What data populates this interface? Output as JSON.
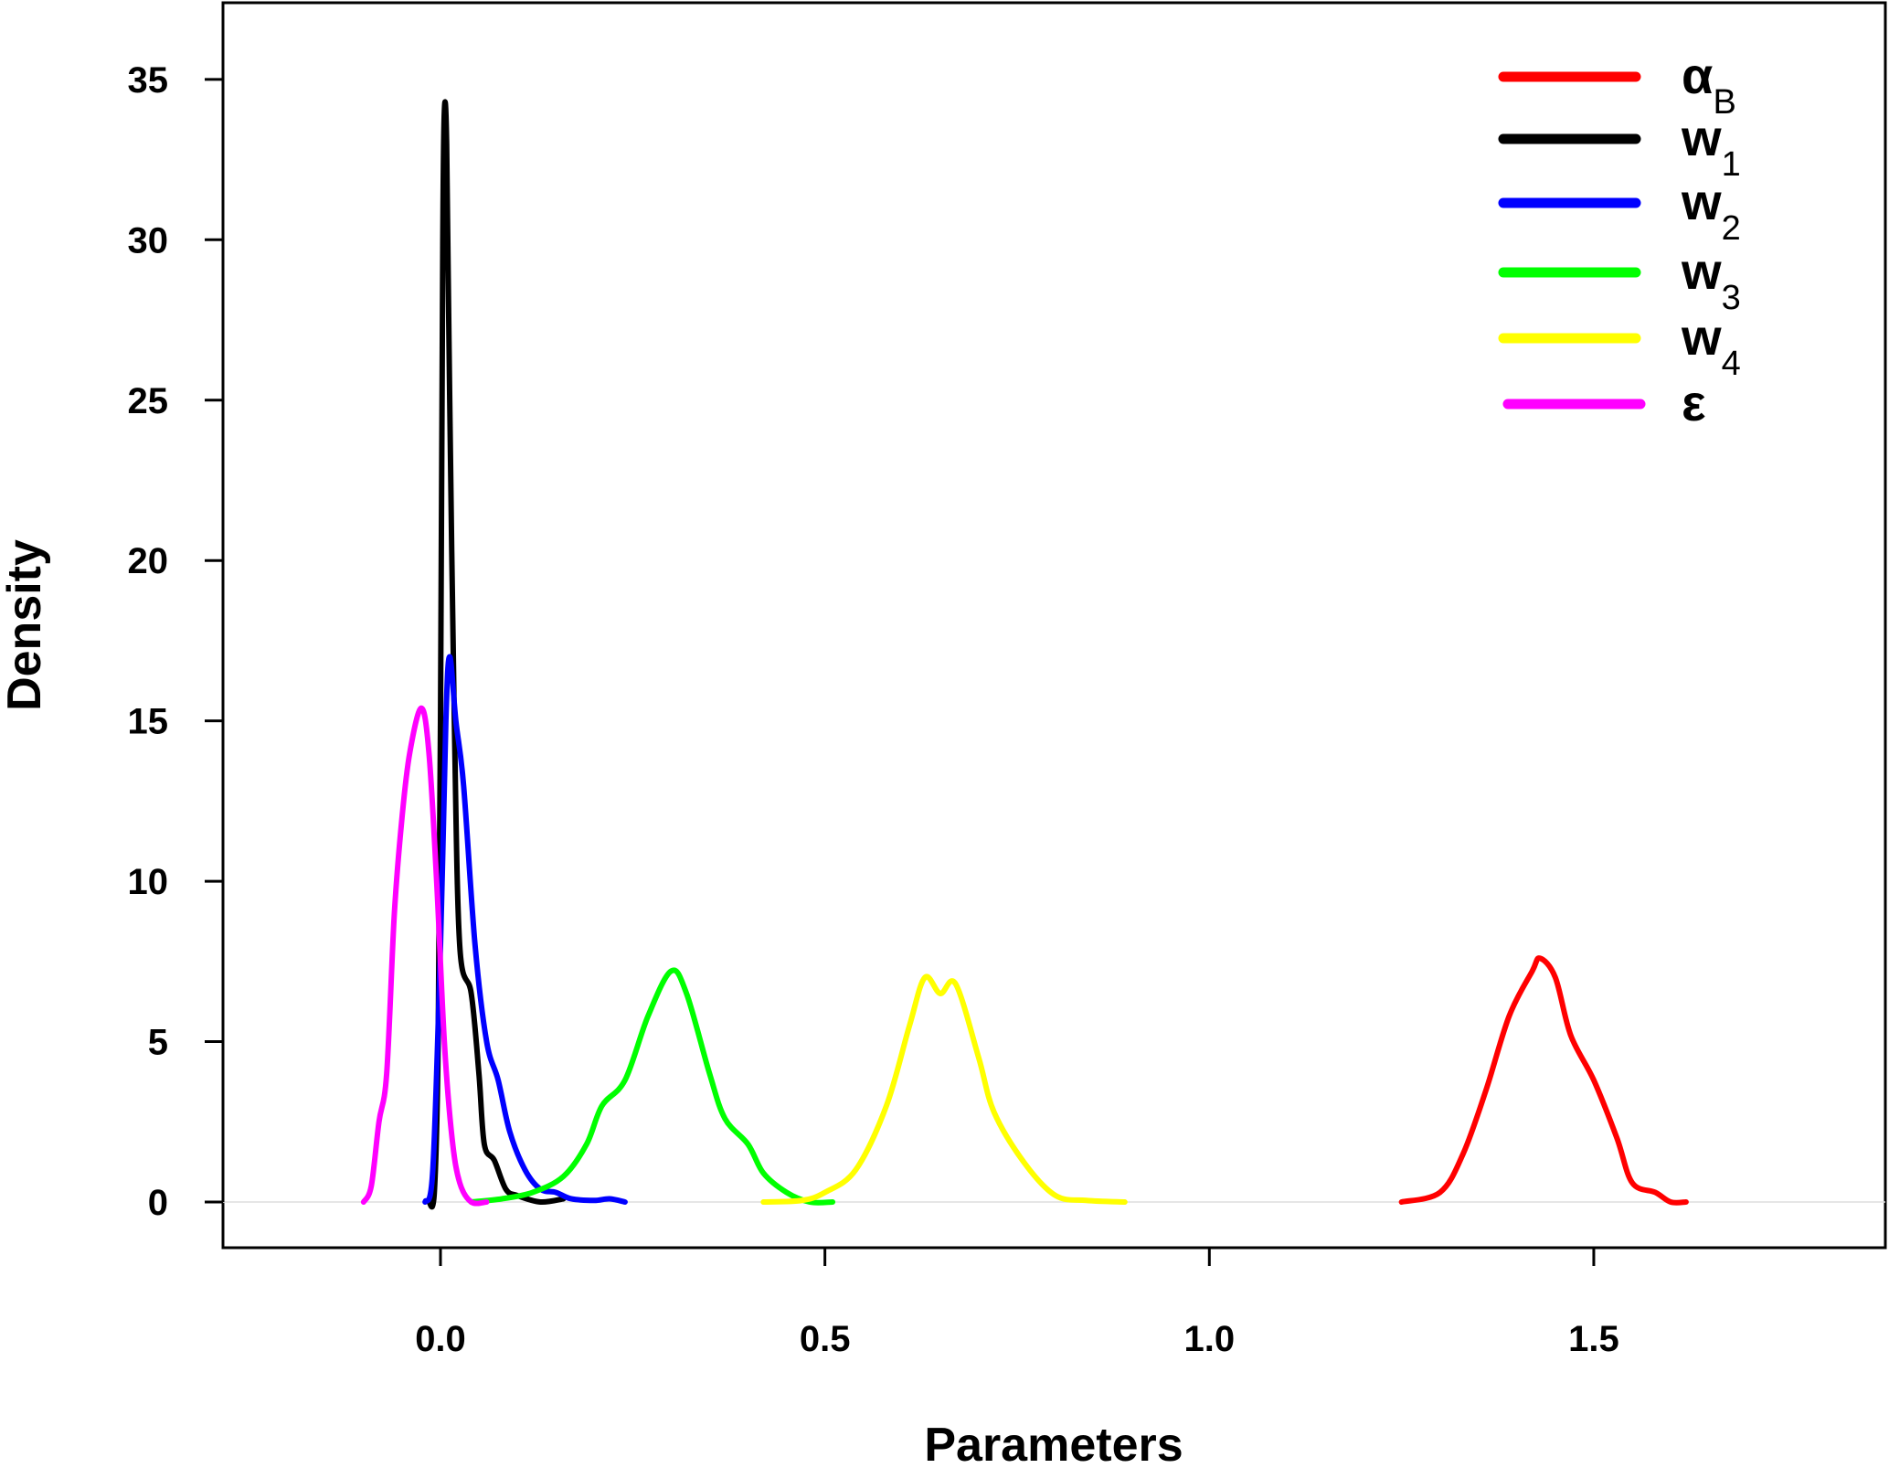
{
  "chart_data": {
    "type": "line",
    "title": "",
    "xlabel": "Parameters",
    "ylabel": "Density",
    "xlim": [
      -0.28,
      1.89
    ],
    "ylim": [
      -1.4,
      37.3
    ],
    "xticks": [
      0.0,
      0.5,
      1.0,
      1.5
    ],
    "xtick_labels": [
      "0.0",
      "0.5",
      "1.0",
      "1.5"
    ],
    "yticks": [
      0,
      5,
      10,
      15,
      20,
      25,
      30,
      35
    ],
    "ytick_labels": [
      "0",
      "5",
      "10",
      "15",
      "20",
      "25",
      "30",
      "35"
    ],
    "grid": false,
    "legend_position": "top-right",
    "series": [
      {
        "name": "αB",
        "base": "α",
        "sub": "B",
        "color": "#ff0000",
        "points": [
          [
            1.25,
            0
          ],
          [
            1.3,
            0.3
          ],
          [
            1.33,
            1.5
          ],
          [
            1.36,
            3.5
          ],
          [
            1.39,
            5.8
          ],
          [
            1.42,
            7.2
          ],
          [
            1.43,
            7.6
          ],
          [
            1.45,
            7.0
          ],
          [
            1.47,
            5.2
          ],
          [
            1.5,
            3.8
          ],
          [
            1.53,
            2.0
          ],
          [
            1.55,
            0.6
          ],
          [
            1.58,
            0.3
          ],
          [
            1.6,
            0
          ],
          [
            1.62,
            0
          ]
        ]
      },
      {
        "name": "w1",
        "base": "w",
        "sub": "1",
        "color": "#000000",
        "points": [
          [
            -0.015,
            0
          ],
          [
            -0.008,
            0.3
          ],
          [
            -0.003,
            5
          ],
          [
            0,
            15
          ],
          [
            0.003,
            30
          ],
          [
            0.005,
            34
          ],
          [
            0.008,
            33
          ],
          [
            0.012,
            25
          ],
          [
            0.018,
            15
          ],
          [
            0.025,
            8
          ],
          [
            0.04,
            6.5
          ],
          [
            0.05,
            4
          ],
          [
            0.057,
            1.8
          ],
          [
            0.07,
            1.3
          ],
          [
            0.085,
            0.4
          ],
          [
            0.1,
            0.2
          ],
          [
            0.13,
            0
          ],
          [
            0.16,
            0.1
          ]
        ]
      },
      {
        "name": "w2",
        "base": "w",
        "sub": "2",
        "color": "#0000ff",
        "points": [
          [
            -0.02,
            0
          ],
          [
            -0.01,
            1
          ],
          [
            0,
            8
          ],
          [
            0.007,
            15
          ],
          [
            0.012,
            17
          ],
          [
            0.02,
            15
          ],
          [
            0.03,
            13
          ],
          [
            0.045,
            8
          ],
          [
            0.06,
            5
          ],
          [
            0.075,
            3.8
          ],
          [
            0.09,
            2.2
          ],
          [
            0.11,
            1
          ],
          [
            0.13,
            0.4
          ],
          [
            0.15,
            0.3
          ],
          [
            0.17,
            0.1
          ],
          [
            0.2,
            0.05
          ],
          [
            0.22,
            0.1
          ],
          [
            0.24,
            0
          ]
        ]
      },
      {
        "name": "w3",
        "base": "w",
        "sub": "3",
        "color": "#00ff00",
        "points": [
          [
            0.04,
            0
          ],
          [
            0.08,
            0.1
          ],
          [
            0.12,
            0.3
          ],
          [
            0.16,
            0.8
          ],
          [
            0.19,
            1.8
          ],
          [
            0.21,
            3
          ],
          [
            0.24,
            3.8
          ],
          [
            0.27,
            5.8
          ],
          [
            0.3,
            7.2
          ],
          [
            0.32,
            6.5
          ],
          [
            0.35,
            4
          ],
          [
            0.37,
            2.6
          ],
          [
            0.4,
            1.8
          ],
          [
            0.42,
            0.9
          ],
          [
            0.45,
            0.3
          ],
          [
            0.48,
            0
          ],
          [
            0.51,
            0
          ]
        ]
      },
      {
        "name": "w4",
        "base": "w",
        "sub": "4",
        "color": "#ffff00",
        "points": [
          [
            0.42,
            0
          ],
          [
            0.47,
            0.05
          ],
          [
            0.5,
            0.3
          ],
          [
            0.54,
            1.0
          ],
          [
            0.58,
            3.0
          ],
          [
            0.61,
            5.5
          ],
          [
            0.63,
            7.0
          ],
          [
            0.65,
            6.5
          ],
          [
            0.67,
            6.8
          ],
          [
            0.7,
            4.5
          ],
          [
            0.72,
            2.8
          ],
          [
            0.76,
            1.2
          ],
          [
            0.8,
            0.2
          ],
          [
            0.84,
            0.05
          ],
          [
            0.89,
            0
          ]
        ]
      },
      {
        "name": "ε",
        "base": "ε",
        "sub": "",
        "color": "#ff00ff",
        "points": [
          [
            -0.1,
            0
          ],
          [
            -0.09,
            0.5
          ],
          [
            -0.08,
            2.5
          ],
          [
            -0.07,
            4
          ],
          [
            -0.06,
            9
          ],
          [
            -0.05,
            12
          ],
          [
            -0.04,
            14
          ],
          [
            -0.025,
            15.4
          ],
          [
            -0.015,
            14
          ],
          [
            -0.005,
            10
          ],
          [
            0.005,
            5
          ],
          [
            0.015,
            2
          ],
          [
            0.025,
            0.6
          ],
          [
            0.04,
            0
          ],
          [
            0.06,
            0
          ]
        ]
      }
    ]
  }
}
